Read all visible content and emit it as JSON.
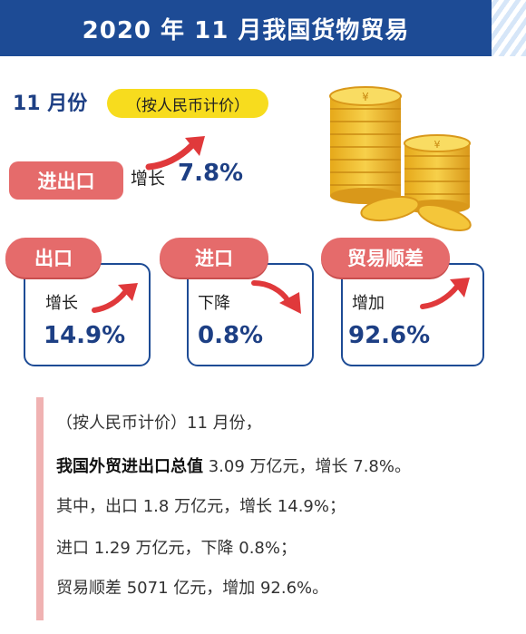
{
  "header": {
    "title": "2020 年 11 月我国货物贸易"
  },
  "summary": {
    "month": "11 月份",
    "unit_note": "（按人民币计价）",
    "total": {
      "label": "进出口",
      "trend": "增长",
      "value": "7.8%"
    }
  },
  "cards": [
    {
      "label": "出口",
      "trend": "增长",
      "value": "14.9%"
    },
    {
      "label": "进口",
      "trend": "下降",
      "value": "0.8%"
    },
    {
      "label": "贸易顺差",
      "trend": "增加",
      "value": "92.6%"
    }
  ],
  "details": {
    "line1": "（按人民币计价）11 月份，",
    "line2_bold": "我国外贸进出口总值",
    "line2_rest": " 3.09 万亿元，增长 7.8%。",
    "line3": "其中，出口 1.8 万亿元，增长 14.9%；",
    "line4": "进口 1.29 万亿元，下降 0.8%；",
    "line5": "贸易顺差 5071 亿元，增加 92.6%。"
  },
  "colors": {
    "header": "#1d4b95",
    "accent_red": "#e56b6b",
    "value_blue": "#1d3f84",
    "tag_yellow": "#f7dc1e",
    "coin_gold": "#f2c12e"
  },
  "icons": [
    "up-arrow-icon",
    "down-arrow-icon",
    "coins-icon"
  ]
}
